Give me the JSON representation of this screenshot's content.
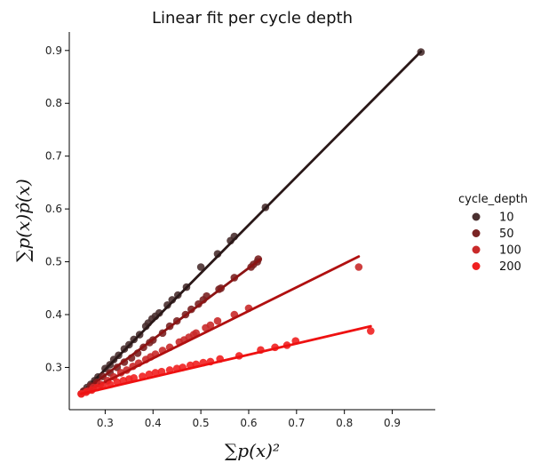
{
  "chart_data": {
    "type": "scatter",
    "title": "Linear fit per cycle depth",
    "xlabel": "∑p(x)²",
    "ylabel": "∑p(x)p̂(x)",
    "xlim": [
      0.225,
      0.99
    ],
    "ylim": [
      0.22,
      0.935
    ],
    "xticks": [
      "0.3",
      "0.4",
      "0.5",
      "0.6",
      "0.7",
      "0.8",
      "0.9"
    ],
    "yticks": [
      "0.3",
      "0.4",
      "0.5",
      "0.6",
      "0.7",
      "0.8",
      "0.9"
    ],
    "grid": false,
    "legend": {
      "title": "cycle_depth",
      "placement": "right"
    },
    "series": [
      {
        "name": "10",
        "point_color": "#4a3030",
        "line_color": "#2a1818",
        "fit": [
          [
            0.255,
            0.255
          ],
          [
            0.96,
            0.898
          ]
        ],
        "points": [
          [
            0.255,
            0.255
          ],
          [
            0.262,
            0.262
          ],
          [
            0.27,
            0.268
          ],
          [
            0.278,
            0.275
          ],
          [
            0.285,
            0.282
          ],
          [
            0.3,
            0.298
          ],
          [
            0.31,
            0.305
          ],
          [
            0.318,
            0.315
          ],
          [
            0.328,
            0.323
          ],
          [
            0.34,
            0.335
          ],
          [
            0.35,
            0.343
          ],
          [
            0.36,
            0.353
          ],
          [
            0.372,
            0.362
          ],
          [
            0.385,
            0.378
          ],
          [
            0.39,
            0.384
          ],
          [
            0.398,
            0.392
          ],
          [
            0.405,
            0.397
          ],
          [
            0.413,
            0.403
          ],
          [
            0.43,
            0.418
          ],
          [
            0.44,
            0.428
          ],
          [
            0.452,
            0.437
          ],
          [
            0.47,
            0.452
          ],
          [
            0.5,
            0.49
          ],
          [
            0.535,
            0.515
          ],
          [
            0.562,
            0.54
          ],
          [
            0.57,
            0.548
          ],
          [
            0.635,
            0.603
          ],
          [
            0.96,
            0.897
          ]
        ]
      },
      {
        "name": "50",
        "point_color": "#7a2424",
        "line_color": "#8b1414",
        "fit": [
          [
            0.255,
            0.255
          ],
          [
            0.625,
            0.505
          ]
        ],
        "points": [
          [
            0.255,
            0.255
          ],
          [
            0.27,
            0.265
          ],
          [
            0.282,
            0.272
          ],
          [
            0.295,
            0.283
          ],
          [
            0.31,
            0.29
          ],
          [
            0.325,
            0.3
          ],
          [
            0.34,
            0.31
          ],
          [
            0.355,
            0.318
          ],
          [
            0.368,
            0.327
          ],
          [
            0.38,
            0.338
          ],
          [
            0.393,
            0.347
          ],
          [
            0.4,
            0.352
          ],
          [
            0.42,
            0.365
          ],
          [
            0.435,
            0.378
          ],
          [
            0.45,
            0.388
          ],
          [
            0.468,
            0.4
          ],
          [
            0.48,
            0.41
          ],
          [
            0.495,
            0.42
          ],
          [
            0.505,
            0.428
          ],
          [
            0.512,
            0.435
          ],
          [
            0.538,
            0.448
          ],
          [
            0.542,
            0.45
          ],
          [
            0.57,
            0.47
          ],
          [
            0.605,
            0.49
          ],
          [
            0.61,
            0.495
          ],
          [
            0.618,
            0.5
          ],
          [
            0.62,
            0.505
          ]
        ]
      },
      {
        "name": "100",
        "point_color": "#c92a2a",
        "line_color": "#b01010",
        "fit": [
          [
            0.25,
            0.25
          ],
          [
            0.83,
            0.51
          ]
        ],
        "points": [
          [
            0.25,
            0.25
          ],
          [
            0.262,
            0.255
          ],
          [
            0.275,
            0.262
          ],
          [
            0.29,
            0.268
          ],
          [
            0.305,
            0.275
          ],
          [
            0.318,
            0.282
          ],
          [
            0.333,
            0.29
          ],
          [
            0.345,
            0.295
          ],
          [
            0.358,
            0.302
          ],
          [
            0.37,
            0.308
          ],
          [
            0.385,
            0.315
          ],
          [
            0.395,
            0.32
          ],
          [
            0.405,
            0.325
          ],
          [
            0.42,
            0.332
          ],
          [
            0.435,
            0.338
          ],
          [
            0.455,
            0.348
          ],
          [
            0.465,
            0.352
          ],
          [
            0.475,
            0.357
          ],
          [
            0.485,
            0.362
          ],
          [
            0.49,
            0.365
          ],
          [
            0.51,
            0.375
          ],
          [
            0.52,
            0.38
          ],
          [
            0.535,
            0.388
          ],
          [
            0.57,
            0.4
          ],
          [
            0.6,
            0.412
          ],
          [
            0.83,
            0.49
          ]
        ]
      },
      {
        "name": "200",
        "point_color": "#f02020",
        "line_color": "#ee1111",
        "fit": [
          [
            0.25,
            0.25
          ],
          [
            0.855,
            0.378
          ]
        ],
        "points": [
          [
            0.25,
            0.25
          ],
          [
            0.26,
            0.253
          ],
          [
            0.272,
            0.257
          ],
          [
            0.283,
            0.262
          ],
          [
            0.295,
            0.265
          ],
          [
            0.31,
            0.268
          ],
          [
            0.325,
            0.272
          ],
          [
            0.338,
            0.275
          ],
          [
            0.35,
            0.278
          ],
          [
            0.36,
            0.28
          ],
          [
            0.378,
            0.283
          ],
          [
            0.392,
            0.287
          ],
          [
            0.405,
            0.29
          ],
          [
            0.418,
            0.292
          ],
          [
            0.435,
            0.295
          ],
          [
            0.45,
            0.298
          ],
          [
            0.462,
            0.3
          ],
          [
            0.478,
            0.304
          ],
          [
            0.49,
            0.306
          ],
          [
            0.505,
            0.309
          ],
          [
            0.52,
            0.311
          ],
          [
            0.54,
            0.316
          ],
          [
            0.58,
            0.322
          ],
          [
            0.625,
            0.333
          ],
          [
            0.655,
            0.338
          ],
          [
            0.68,
            0.342
          ],
          [
            0.698,
            0.35
          ],
          [
            0.855,
            0.369
          ]
        ]
      }
    ]
  }
}
